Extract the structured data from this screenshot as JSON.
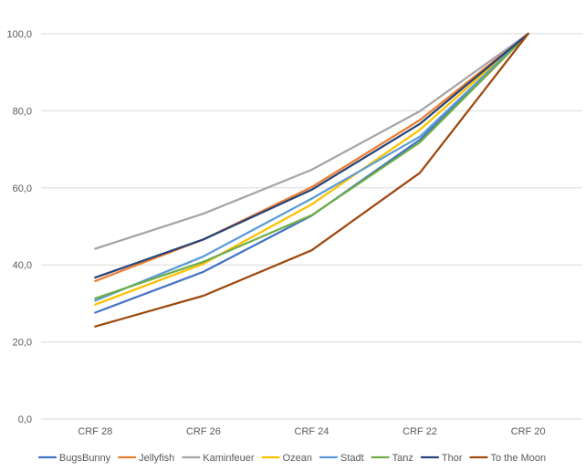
{
  "chart_data": {
    "type": "line",
    "title": "",
    "xlabel": "",
    "ylabel": "",
    "categories": [
      "CRF 28",
      "CRF 26",
      "CRF 24",
      "CRF 22",
      "CRF 20"
    ],
    "ylim": [
      0,
      100
    ],
    "yticks": [
      "0,0",
      "20,0",
      "40,0",
      "60,0",
      "80,0",
      "100,0"
    ],
    "grid": true,
    "legend_position": "bottom",
    "series": [
      {
        "name": "BugsBunny",
        "color": "#4472C4",
        "values": [
          27.6,
          38.2,
          52.8,
          72.5,
          100
        ]
      },
      {
        "name": "Jellyfish",
        "color": "#ED7D31",
        "values": [
          35.8,
          46.6,
          60.2,
          77.6,
          100
        ]
      },
      {
        "name": "Kaminfeuer",
        "color": "#A5A5A5",
        "values": [
          44.2,
          53.3,
          64.7,
          79.9,
          100
        ]
      },
      {
        "name": "Ozean",
        "color": "#FFC000",
        "values": [
          29.7,
          40.3,
          55.7,
          75.1,
          100
        ]
      },
      {
        "name": "Stadt",
        "color": "#5B9BD5",
        "values": [
          30.7,
          42.2,
          57.2,
          73.3,
          100
        ]
      },
      {
        "name": "Tanz",
        "color": "#70AD47",
        "values": [
          31.3,
          40.8,
          52.9,
          71.8,
          100
        ]
      },
      {
        "name": "Thor",
        "color": "#264478",
        "values": [
          36.7,
          46.6,
          59.5,
          76.6,
          100
        ]
      },
      {
        "name": "To the Moon",
        "color": "#9E480E",
        "values": [
          24.0,
          32.0,
          43.8,
          63.9,
          100
        ]
      }
    ]
  }
}
